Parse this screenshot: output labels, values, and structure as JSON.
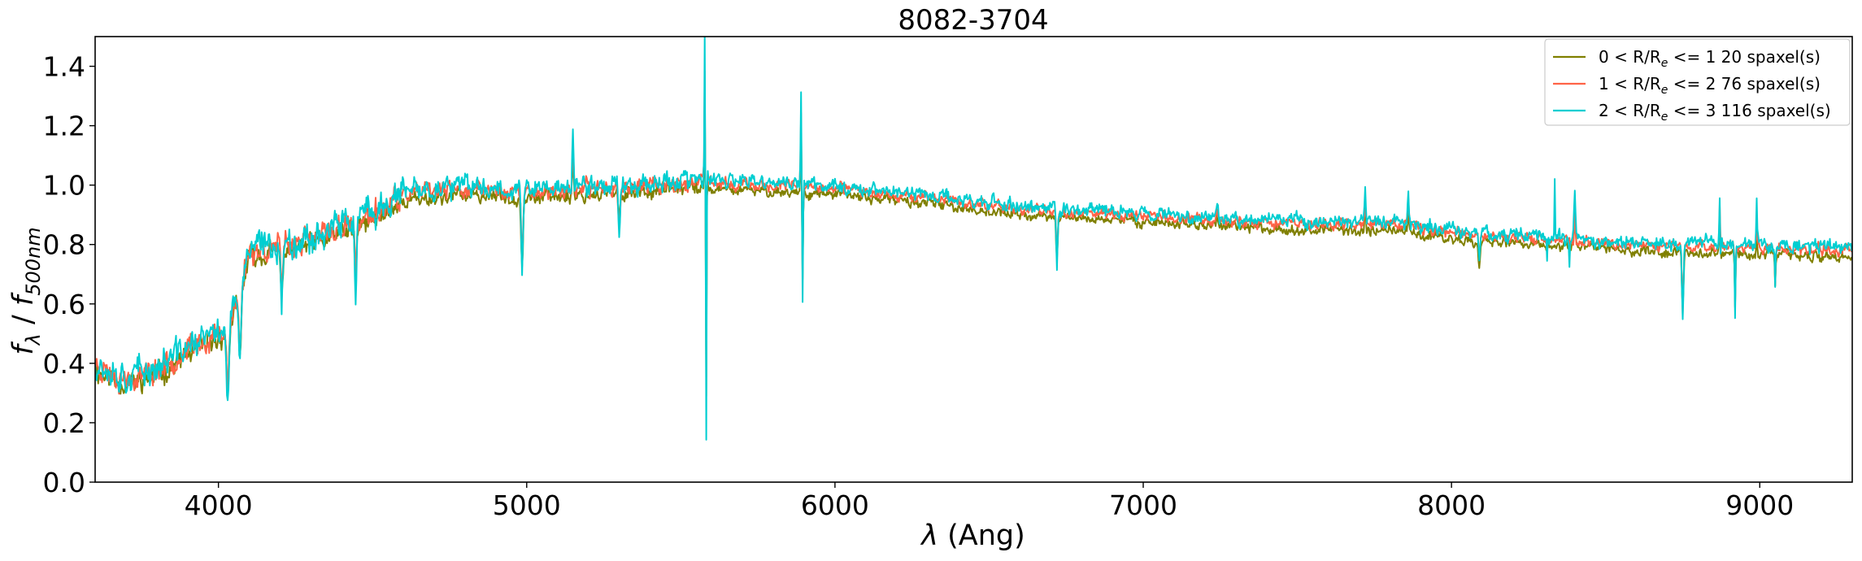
{
  "chart_data": {
    "type": "line",
    "title": "8082-3704",
    "xlabel": "λ (Ang)",
    "ylabel": "f_λ / f_500nm",
    "xlim": [
      3600,
      9300
    ],
    "ylim": [
      0.0,
      1.5
    ],
    "xticks": [
      4000,
      5000,
      6000,
      7000,
      8000,
      9000
    ],
    "yticks": [
      0.0,
      0.2,
      0.4,
      0.6,
      0.8,
      1.0,
      1.2,
      1.4
    ],
    "ytick_labels": [
      "0.0",
      "0.2",
      "0.4",
      "0.6",
      "0.8",
      "1.0",
      "1.2",
      "1.4"
    ],
    "legend_position": "top-right",
    "grid": false,
    "series": [
      {
        "name": "0 < R/R_e <= 1 20 spaxel(s)",
        "legend": {
          "prefix": "0 < R/R",
          "sub": "e",
          "suffix": " <= 1 20 spaxel(s)"
        },
        "color": "#808000",
        "offset": -0.02,
        "noise": 0.025,
        "seed": 11
      },
      {
        "name": "1 < R/R_e <= 2 76 spaxel(s)",
        "legend": {
          "prefix": "1 < R/R",
          "sub": "e",
          "suffix": " <= 2 76 spaxel(s)"
        },
        "color": "#ff6347",
        "offset": 0.0,
        "noise": 0.028,
        "seed": 23
      },
      {
        "name": "2 < R/R_e <= 3 116 spaxel(s)",
        "legend": {
          "prefix": "2 < R/R",
          "sub": "e",
          "suffix": " <= 3 116 spaxel(s)"
        },
        "color": "#00ced1",
        "offset": 0.01,
        "noise": 0.035,
        "seed": 37
      }
    ],
    "continuum": {
      "x": [
        3600,
        3700,
        3800,
        3900,
        4000,
        4050,
        4100,
        4200,
        4300,
        4400,
        4500,
        4600,
        4800,
        5000,
        5200,
        5500,
        5800,
        6000,
        6300,
        6600,
        7000,
        7300,
        7600,
        7800,
        8000,
        8300,
        8600,
        9000,
        9300
      ],
      "y": [
        0.4,
        0.35,
        0.38,
        0.45,
        0.5,
        0.58,
        0.78,
        0.8,
        0.82,
        0.86,
        0.9,
        0.97,
        0.99,
        0.98,
        0.99,
        1.01,
        1.0,
        0.99,
        0.96,
        0.92,
        0.9,
        0.88,
        0.87,
        0.87,
        0.84,
        0.82,
        0.8,
        0.79,
        0.78
      ]
    },
    "features": [
      {
        "x": 4030,
        "depth": -0.3,
        "width": 8
      },
      {
        "x": 4070,
        "depth": -0.3,
        "width": 8
      },
      {
        "x": 4205,
        "depth": -0.25,
        "width": 6
      },
      {
        "x": 4445,
        "depth": -0.25,
        "width": 6
      },
      {
        "x": 4985,
        "depth": -0.3,
        "width": 6
      },
      {
        "x": 5150,
        "depth": 0.2,
        "width": 4
      },
      {
        "x": 5300,
        "depth": -0.15,
        "width": 6
      },
      {
        "x": 5577,
        "depth": 0.55,
        "width": 2
      },
      {
        "x": 5582,
        "depth": -1.0,
        "width": 2
      },
      {
        "x": 5890,
        "depth": 0.32,
        "width": 3
      },
      {
        "x": 5895,
        "depth": -0.4,
        "width": 3
      },
      {
        "x": 6720,
        "depth": -0.2,
        "width": 5
      },
      {
        "x": 7240,
        "depth": 0.05,
        "width": 5
      },
      {
        "x": 7720,
        "depth": 0.12,
        "width": 4
      },
      {
        "x": 7860,
        "depth": 0.12,
        "width": 4
      },
      {
        "x": 8090,
        "depth": -0.1,
        "width": 5
      },
      {
        "x": 8400,
        "depth": 0.15,
        "width": 4
      },
      {
        "x": 8750,
        "depth": -0.28,
        "width": 5
      },
      {
        "x": 8870,
        "depth": 0.18,
        "width": 3
      },
      {
        "x": 8920,
        "depth": -0.25,
        "width": 3
      },
      {
        "x": 8990,
        "depth": 0.15,
        "width": 3
      },
      {
        "x": 9050,
        "depth": -0.15,
        "width": 3
      }
    ]
  }
}
